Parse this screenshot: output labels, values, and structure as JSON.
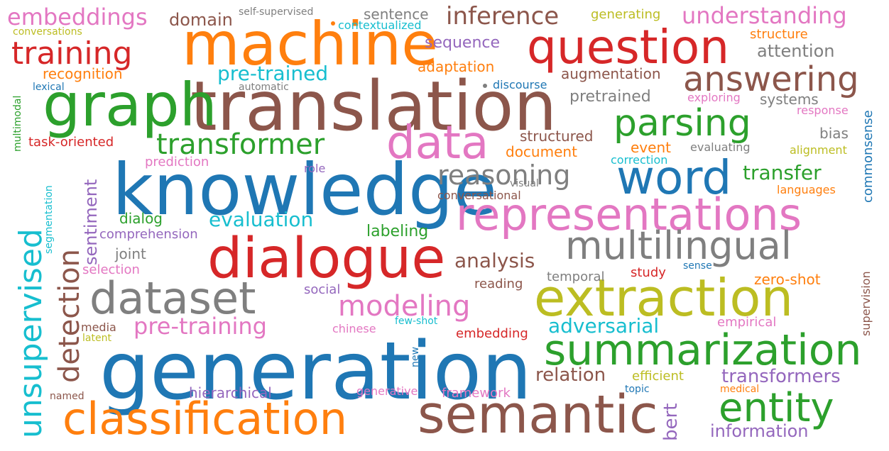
{
  "colors": {
    "blue": "#1f77b4",
    "orange": "#ff7f0e",
    "green": "#2ca02c",
    "red": "#d62728",
    "purple": "#9467bd",
    "brown": "#8c564b",
    "pink": "#e377c2",
    "gray": "#7f7f7f",
    "olive": "#bcbd22",
    "cyan": "#17becf"
  },
  "words": [
    {
      "text": "generation",
      "color": "blue"
    },
    {
      "text": "knowledge",
      "color": "blue"
    },
    {
      "text": "translation",
      "color": "brown"
    },
    {
      "text": "machine",
      "color": "orange"
    },
    {
      "text": "graph",
      "color": "green"
    },
    {
      "text": "question",
      "color": "red"
    },
    {
      "text": "dialogue",
      "color": "red"
    },
    {
      "text": "semantic",
      "color": "brown"
    },
    {
      "text": "classification",
      "color": "orange"
    },
    {
      "text": "extraction",
      "color": "olive"
    },
    {
      "text": "representations",
      "color": "pink"
    },
    {
      "text": "summarization",
      "color": "green"
    },
    {
      "text": "data",
      "color": "pink"
    },
    {
      "text": "word",
      "color": "blue"
    },
    {
      "text": "dataset",
      "color": "gray"
    },
    {
      "text": "multilingual",
      "color": "gray"
    },
    {
      "text": "answering",
      "color": "brown"
    },
    {
      "text": "parsing",
      "color": "green"
    },
    {
      "text": "entity",
      "color": "green"
    },
    {
      "text": "unsupervised",
      "color": "cyan"
    },
    {
      "text": "training",
      "color": "red"
    },
    {
      "text": "transformer",
      "color": "green"
    },
    {
      "text": "modeling",
      "color": "pink"
    },
    {
      "text": "reasoning",
      "color": "gray"
    },
    {
      "text": "detection",
      "color": "brown"
    },
    {
      "text": "embeddings",
      "color": "pink"
    },
    {
      "text": "inference",
      "color": "brown"
    },
    {
      "text": "understanding",
      "color": "pink"
    },
    {
      "text": "pre-training",
      "color": "pink"
    },
    {
      "text": "pre-trained",
      "color": "cyan"
    },
    {
      "text": "adversarial",
      "color": "cyan"
    },
    {
      "text": "transfer",
      "color": "green"
    },
    {
      "text": "evaluation",
      "color": "cyan"
    },
    {
      "text": "analysis",
      "color": "brown"
    },
    {
      "text": "transformers",
      "color": "purple"
    },
    {
      "text": "relation",
      "color": "brown"
    },
    {
      "text": "information",
      "color": "purple"
    },
    {
      "text": "domain",
      "color": "brown"
    },
    {
      "text": "attention",
      "color": "gray"
    },
    {
      "text": "sequence",
      "color": "purple"
    },
    {
      "text": "sentence",
      "color": "gray"
    },
    {
      "text": "pretrained",
      "color": "gray"
    },
    {
      "text": "sentiment",
      "color": "purple"
    },
    {
      "text": "bert",
      "color": "purple"
    },
    {
      "text": "labeling",
      "color": "green"
    },
    {
      "text": "augmentation",
      "color": "brown"
    },
    {
      "text": "document",
      "color": "orange"
    },
    {
      "text": "recognition",
      "color": "orange"
    },
    {
      "text": "adaptation",
      "color": "orange"
    },
    {
      "text": "structured",
      "color": "brown"
    },
    {
      "text": "systems",
      "color": "gray"
    },
    {
      "text": "hierarchical",
      "color": "purple"
    },
    {
      "text": "dialog",
      "color": "green"
    },
    {
      "text": "task-oriented",
      "color": "red"
    },
    {
      "text": "event",
      "color": "orange"
    },
    {
      "text": "bias",
      "color": "gray"
    },
    {
      "text": "zero-shot",
      "color": "orange"
    },
    {
      "text": "prediction",
      "color": "pink"
    },
    {
      "text": "comprehension",
      "color": "purple"
    },
    {
      "text": "joint",
      "color": "gray"
    },
    {
      "text": "selection",
      "color": "pink"
    },
    {
      "text": "social",
      "color": "purple"
    },
    {
      "text": "reading",
      "color": "brown"
    },
    {
      "text": "temporal",
      "color": "gray"
    },
    {
      "text": "study",
      "color": "red"
    },
    {
      "text": "embedding",
      "color": "red"
    },
    {
      "text": "empirical",
      "color": "pink"
    },
    {
      "text": "efficient",
      "color": "olive"
    },
    {
      "text": "framework",
      "color": "pink"
    },
    {
      "text": "generative",
      "color": "pink"
    },
    {
      "text": "chinese",
      "color": "pink"
    },
    {
      "text": "role",
      "color": "purple"
    },
    {
      "text": "correction",
      "color": "cyan"
    },
    {
      "text": "languages",
      "color": "orange"
    },
    {
      "text": "alignment",
      "color": "olive"
    },
    {
      "text": "evaluating",
      "color": "gray"
    },
    {
      "text": "response",
      "color": "pink"
    },
    {
      "text": "exploring",
      "color": "pink"
    },
    {
      "text": "discourse",
      "color": "blue"
    },
    {
      "text": "structure",
      "color": "orange"
    },
    {
      "text": "generating",
      "color": "olive"
    },
    {
      "text": "contextualized",
      "color": "cyan"
    },
    {
      "text": "self-supervised",
      "color": "gray"
    },
    {
      "text": "conversations",
      "color": "olive"
    },
    {
      "text": "lexical",
      "color": "blue"
    },
    {
      "text": "automatic",
      "color": "gray"
    },
    {
      "text": "conversational",
      "color": "brown"
    },
    {
      "text": "visual",
      "color": "gray"
    },
    {
      "text": "media",
      "color": "brown"
    },
    {
      "text": "latent",
      "color": "olive"
    },
    {
      "text": "few-shot",
      "color": "cyan"
    },
    {
      "text": "named",
      "color": "brown"
    },
    {
      "text": "topic",
      "color": "blue"
    },
    {
      "text": "medical",
      "color": "orange"
    },
    {
      "text": "sense",
      "color": "blue"
    },
    {
      "text": "new",
      "color": "blue"
    },
    {
      "text": "commonsense",
      "color": "blue"
    },
    {
      "text": "supervision",
      "color": "brown"
    },
    {
      "text": "multimodal",
      "color": "green"
    },
    {
      "text": "segmentation",
      "color": "cyan"
    }
  ]
}
